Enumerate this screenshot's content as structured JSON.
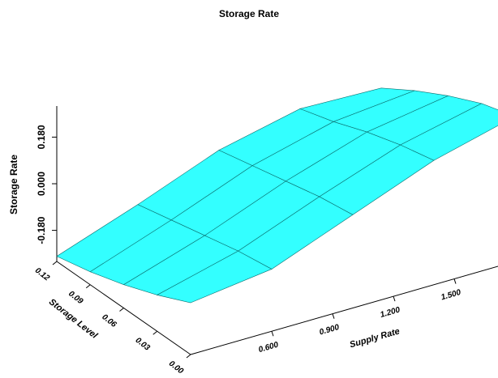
{
  "chart_data": {
    "type": "surface",
    "title": "Storage Rate",
    "xlabel": "Supply Rate",
    "ylabel": "Storage Level",
    "zlabel": "Storage Rate",
    "x": [
      0.2,
      0.6,
      1.0,
      1.4,
      1.8
    ],
    "y": [
      0,
      0.03,
      0.06,
      0.09,
      0.12
    ],
    "z": [
      [
        -0.1,
        -0.06,
        0.06,
        0.18,
        0.26
      ],
      [
        -0.16,
        -0.08,
        0.04,
        0.15,
        0.22
      ],
      [
        -0.21,
        -0.11,
        0.01,
        0.11,
        0.16
      ],
      [
        -0.25,
        -0.14,
        -0.02,
        0.06,
        0.09
      ],
      [
        -0.28,
        -0.17,
        -0.05,
        0.02,
        0.01
      ]
    ],
    "color": "#33ffff",
    "xlim": [
      0.2,
      1.8
    ],
    "ylim": [
      0,
      0.12
    ],
    "zlim": [
      -0.3,
      0.3
    ],
    "xticks": [
      {
        "value": 0.6,
        "label": "0.600"
      },
      {
        "value": 0.9,
        "label": "0.900"
      },
      {
        "value": 1.2,
        "label": "1.200"
      },
      {
        "value": 1.5,
        "label": "1.500"
      }
    ],
    "yticks": [
      {
        "value": 0,
        "label": "0.00"
      },
      {
        "value": 0.03,
        "label": "0.03"
      },
      {
        "value": 0.06,
        "label": "0.06"
      },
      {
        "value": 0.09,
        "label": "0.09"
      },
      {
        "value": 0.12,
        "label": "0.12"
      }
    ],
    "zticks": [
      {
        "value": -0.18,
        "label": "-0.180"
      },
      {
        "value": 0,
        "label": "0.000"
      },
      {
        "value": 0.18,
        "label": "0.180"
      }
    ]
  }
}
